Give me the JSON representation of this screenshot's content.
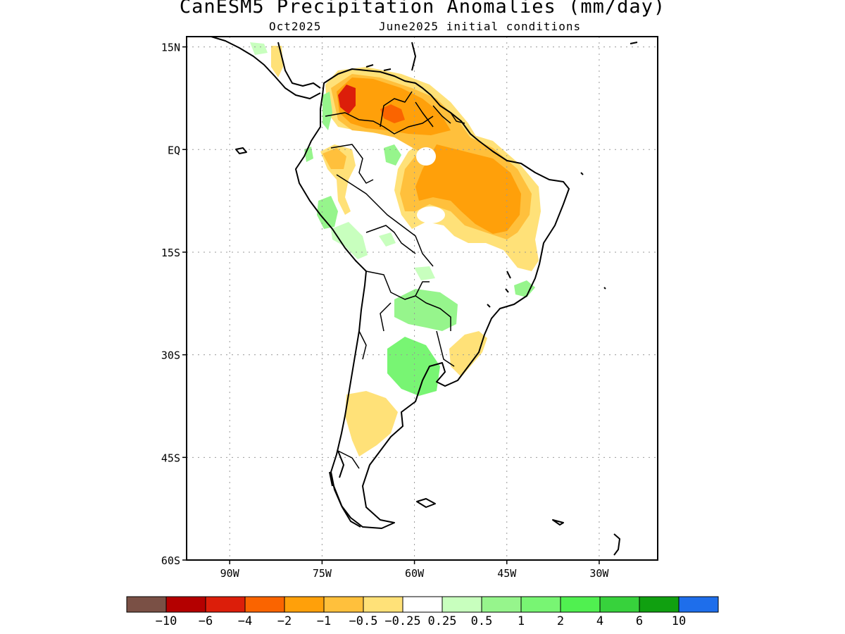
{
  "title": "CanESM5 Precipitation Anomalies (mm/day)",
  "subtitle_left": "Oct2025",
  "subtitle_right": "June2025 initial conditions",
  "map": {
    "lon_range": [
      -97,
      -20.5
    ],
    "lat_range": [
      -60,
      16.5
    ],
    "lat_ticks": [
      {
        "value": 15,
        "label": "15N"
      },
      {
        "value": 0,
        "label": "EQ"
      },
      {
        "value": -15,
        "label": "15S"
      },
      {
        "value": -30,
        "label": "30S"
      },
      {
        "value": -45,
        "label": "45S"
      },
      {
        "value": -60,
        "label": "60S"
      }
    ],
    "lon_ticks": [
      {
        "value": -90,
        "label": "90W"
      },
      {
        "value": -75,
        "label": "75W"
      },
      {
        "value": -60,
        "label": "60W"
      },
      {
        "value": -45,
        "label": "45W"
      },
      {
        "value": -30,
        "label": "30W"
      }
    ],
    "grid": "dotted"
  },
  "colorbar": {
    "colors": [
      "#7a5045",
      "#b40000",
      "#dc1e0a",
      "#fa6400",
      "#ffa00a",
      "#ffc03c",
      "#ffe178",
      "#ffffff",
      "#c8ffbe",
      "#96f58c",
      "#78f573",
      "#50f050",
      "#37d23c",
      "#10a010",
      "#1e6eeb"
    ],
    "labels": [
      "-10",
      "-6",
      "-4",
      "-2",
      "-1",
      "-0.5",
      "-0.25",
      "0.25",
      "0.5",
      "1",
      "2",
      "4",
      "6",
      "10"
    ]
  },
  "anomaly_regions": [
    {
      "name": "north-venezuela-colombia-dry",
      "level": "-1",
      "color": "#ffa00a"
    },
    {
      "name": "colombia-core-dry",
      "level": "-4",
      "color": "#fa6400"
    },
    {
      "name": "venezuela-core-dry",
      "level": "-2",
      "color": "#fa6400"
    },
    {
      "name": "northeast-brazil-dry",
      "level": "-1",
      "color": "#ffa00a"
    },
    {
      "name": "amazon-margin-dry",
      "level": "-0.5",
      "color": "#ffc03c"
    },
    {
      "name": "east-brazil-light-dry",
      "level": "-0.25",
      "color": "#ffe178"
    },
    {
      "name": "southern-brazil-light-dry",
      "level": "-0.25",
      "color": "#ffe178"
    },
    {
      "name": "patagonia-light-dry",
      "level": "-0.25",
      "color": "#ffe178"
    },
    {
      "name": "peru-wet",
      "level": "0.5",
      "color": "#96f58c"
    },
    {
      "name": "paraguay-wet",
      "level": "0.5",
      "color": "#96f58c"
    },
    {
      "name": "argentina-wet",
      "level": "1",
      "color": "#78f573"
    },
    {
      "name": "southeast-brazil-wet",
      "level": "0.5",
      "color": "#96f58c"
    }
  ]
}
